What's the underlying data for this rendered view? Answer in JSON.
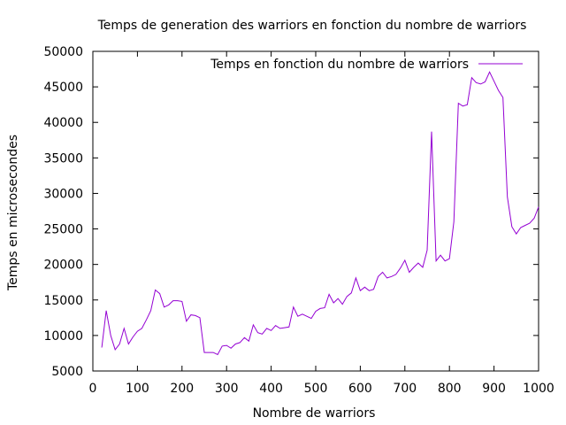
{
  "chart_data": {
    "type": "line",
    "title": "Temps de generation des warriors en fonction du nombre de warriors",
    "xlabel": "Nombre de warriors",
    "ylabel": "Temps en microsecondes",
    "xlim": [
      0,
      1000
    ],
    "ylim": [
      5000,
      50000
    ],
    "xticks": [
      0,
      100,
      200,
      300,
      400,
      500,
      600,
      700,
      800,
      900,
      1000
    ],
    "yticks": [
      5000,
      10000,
      15000,
      20000,
      25000,
      30000,
      35000,
      40000,
      45000,
      50000
    ],
    "grid": false,
    "legend_position": "top-right",
    "series": [
      {
        "name": "Temps en fonction du nombre de warriors",
        "color": "#9400d3",
        "x": [
          20,
          30,
          40,
          50,
          60,
          70,
          80,
          90,
          100,
          110,
          120,
          130,
          140,
          150,
          160,
          170,
          180,
          190,
          200,
          210,
          220,
          230,
          240,
          250,
          260,
          270,
          280,
          290,
          300,
          310,
          320,
          330,
          340,
          350,
          360,
          370,
          380,
          390,
          400,
          410,
          420,
          430,
          440,
          450,
          460,
          470,
          480,
          490,
          500,
          510,
          520,
          530,
          540,
          550,
          560,
          570,
          580,
          590,
          600,
          610,
          620,
          630,
          640,
          650,
          660,
          670,
          680,
          690,
          700,
          710,
          720,
          730,
          740,
          750,
          760,
          770,
          780,
          790,
          800,
          810,
          820,
          830,
          840,
          850,
          860,
          870,
          880,
          890,
          900,
          910,
          920,
          930,
          940,
          950,
          960,
          970,
          980,
          990,
          1000
        ],
        "y": [
          8300,
          13500,
          10000,
          8000,
          8800,
          11000,
          8800,
          9800,
          10600,
          11000,
          12200,
          13500,
          16400,
          15900,
          14000,
          14300,
          14900,
          14900,
          14800,
          12000,
          12900,
          12800,
          12500,
          7600,
          7600,
          7600,
          7300,
          8500,
          8600,
          8200,
          8800,
          9000,
          9700,
          9200,
          11500,
          10400,
          10200,
          11000,
          10700,
          11400,
          11000,
          11100,
          11200,
          14000,
          12700,
          13000,
          12700,
          12400,
          13400,
          13800,
          13900,
          15800,
          14600,
          15200,
          14400,
          15500,
          16000,
          18100,
          16300,
          16800,
          16300,
          16500,
          18300,
          18900,
          18100,
          18300,
          18600,
          19500,
          20600,
          18900,
          19600,
          20200,
          19600,
          22000,
          38700,
          20500,
          21300,
          20500,
          20800,
          26000,
          42700,
          42300,
          42500,
          46300,
          45600,
          45400,
          45700,
          47100,
          45800,
          44500,
          43500,
          29500,
          25300,
          24300,
          25200,
          25500,
          25800,
          26500,
          28100
        ]
      }
    ]
  }
}
